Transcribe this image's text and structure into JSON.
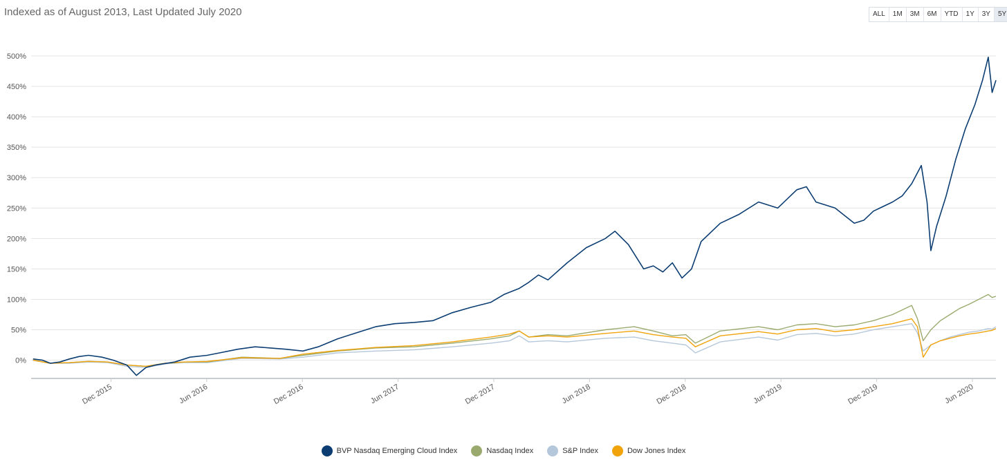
{
  "header": {
    "title": "Indexed as of August 2013, Last Updated July 2020",
    "range_buttons": [
      "ALL",
      "1M",
      "3M",
      "6M",
      "YTD",
      "1Y",
      "3Y",
      "5Y"
    ],
    "active_range": "5Y"
  },
  "chart_data": {
    "type": "line",
    "title": "Indexed as of August 2013, Last Updated July 2020",
    "ylim": [
      -30,
      500
    ],
    "yticks": [
      0,
      50,
      100,
      150,
      200,
      250,
      300,
      350,
      400,
      450,
      500
    ],
    "ytick_labels": [
      "0%",
      "50%",
      "100%",
      "150%",
      "200%",
      "250%",
      "300%",
      "350%",
      "400%",
      "450%",
      "500%"
    ],
    "xlim": [
      2015.5,
      2020.54
    ],
    "xticks": [
      2015.917,
      2016.417,
      2016.917,
      2017.417,
      2017.917,
      2018.417,
      2018.917,
      2019.417,
      2019.917,
      2020.417
    ],
    "xtick_labels": [
      "Dec 2015",
      "Jun 2016",
      "Dec 2016",
      "Jun 2017",
      "Dec 2017",
      "Jun 2018",
      "Dec 2018",
      "Jun 2019",
      "Dec 2019",
      "Jun 2020"
    ],
    "grid": true,
    "legend": "bottom-center",
    "series": [
      {
        "name": "BVP Nasdaq Emerging Cloud Index",
        "color": "#0b3d72",
        "x": [
          2015.51,
          2015.56,
          2015.6,
          2015.65,
          2015.7,
          2015.75,
          2015.8,
          2015.87,
          2015.93,
          2016.0,
          2016.05,
          2016.1,
          2016.15,
          2016.25,
          2016.33,
          2016.42,
          2016.5,
          2016.58,
          2016.67,
          2016.75,
          2016.83,
          2016.92,
          2017.0,
          2017.1,
          2017.2,
          2017.3,
          2017.4,
          2017.5,
          2017.6,
          2017.7,
          2017.8,
          2017.9,
          2017.97,
          2018.05,
          2018.1,
          2018.15,
          2018.2,
          2018.3,
          2018.4,
          2018.5,
          2018.55,
          2018.62,
          2018.7,
          2018.75,
          2018.8,
          2018.85,
          2018.9,
          2018.95,
          2019.0,
          2019.1,
          2019.2,
          2019.3,
          2019.4,
          2019.5,
          2019.55,
          2019.6,
          2019.7,
          2019.8,
          2019.85,
          2019.9,
          2020.0,
          2020.05,
          2020.1,
          2020.15,
          2020.18,
          2020.2,
          2020.23,
          2020.28,
          2020.33,
          2020.38,
          2020.43,
          2020.47,
          2020.5,
          2020.52,
          2020.54
        ],
        "values": [
          2,
          0,
          -5,
          -3,
          2,
          6,
          8,
          5,
          0,
          -8,
          -25,
          -12,
          -8,
          -3,
          5,
          8,
          13,
          18,
          22,
          20,
          18,
          15,
          22,
          35,
          45,
          55,
          60,
          62,
          65,
          78,
          87,
          95,
          108,
          118,
          128,
          140,
          132,
          160,
          185,
          200,
          212,
          190,
          150,
          155,
          145,
          160,
          135,
          150,
          195,
          225,
          240,
          260,
          250,
          280,
          285,
          260,
          250,
          225,
          230,
          245,
          260,
          270,
          290,
          320,
          260,
          180,
          220,
          270,
          330,
          380,
          420,
          460,
          498,
          440,
          460
        ]
      },
      {
        "name": "Nasdaq Index",
        "color": "#9aaa6e",
        "x": [
          2015.51,
          2015.6,
          2015.7,
          2015.8,
          2015.9,
          2016.0,
          2016.1,
          2016.2,
          2016.3,
          2016.42,
          2016.6,
          2016.8,
          2016.92,
          2017.1,
          2017.3,
          2017.5,
          2017.7,
          2017.9,
          2018.0,
          2018.05,
          2018.1,
          2018.2,
          2018.3,
          2018.5,
          2018.65,
          2018.75,
          2018.85,
          2018.92,
          2018.97,
          2019.1,
          2019.3,
          2019.4,
          2019.5,
          2019.6,
          2019.7,
          2019.8,
          2019.9,
          2020.0,
          2020.1,
          2020.13,
          2020.16,
          2020.2,
          2020.25,
          2020.3,
          2020.35,
          2020.4,
          2020.45,
          2020.5,
          2020.52,
          2020.54
        ],
        "values": [
          0,
          -5,
          -4,
          -2,
          -3,
          -8,
          -10,
          -5,
          -3,
          -3,
          5,
          3,
          8,
          15,
          20,
          22,
          28,
          35,
          40,
          48,
          38,
          42,
          40,
          50,
          55,
          48,
          40,
          42,
          28,
          48,
          55,
          50,
          58,
          60,
          55,
          58,
          65,
          75,
          90,
          68,
          32,
          50,
          65,
          75,
          85,
          92,
          100,
          108,
          103,
          105
        ]
      },
      {
        "name": "S&P Index",
        "color": "#b5c7da",
        "x": [
          2015.51,
          2015.6,
          2015.7,
          2015.8,
          2015.9,
          2016.0,
          2016.1,
          2016.2,
          2016.3,
          2016.42,
          2016.6,
          2016.8,
          2016.92,
          2017.1,
          2017.3,
          2017.5,
          2017.7,
          2017.9,
          2018.0,
          2018.05,
          2018.1,
          2018.2,
          2018.3,
          2018.5,
          2018.65,
          2018.75,
          2018.85,
          2018.92,
          2018.97,
          2019.1,
          2019.3,
          2019.4,
          2019.5,
          2019.6,
          2019.7,
          2019.8,
          2019.9,
          2020.0,
          2020.1,
          2020.13,
          2020.16,
          2020.2,
          2020.25,
          2020.3,
          2020.35,
          2020.4,
          2020.45,
          2020.5,
          2020.52,
          2020.54
        ],
        "values": [
          0,
          -5,
          -5,
          -3,
          -4,
          -10,
          -12,
          -6,
          -4,
          -4,
          3,
          2,
          5,
          12,
          15,
          17,
          22,
          28,
          32,
          40,
          30,
          32,
          30,
          36,
          38,
          32,
          28,
          25,
          12,
          30,
          38,
          33,
          42,
          44,
          40,
          43,
          50,
          55,
          60,
          45,
          15,
          25,
          32,
          38,
          42,
          46,
          48,
          52,
          51,
          55
        ]
      },
      {
        "name": "Dow Jones Index",
        "color": "#f0a30a",
        "x": [
          2015.51,
          2015.6,
          2015.7,
          2015.8,
          2015.9,
          2016.0,
          2016.1,
          2016.2,
          2016.3,
          2016.42,
          2016.6,
          2016.8,
          2016.92,
          2017.1,
          2017.3,
          2017.5,
          2017.7,
          2017.9,
          2018.0,
          2018.05,
          2018.1,
          2018.2,
          2018.3,
          2018.5,
          2018.65,
          2018.75,
          2018.85,
          2018.92,
          2018.97,
          2019.1,
          2019.3,
          2019.4,
          2019.5,
          2019.6,
          2019.7,
          2019.8,
          2019.9,
          2020.0,
          2020.1,
          2020.13,
          2020.16,
          2020.2,
          2020.25,
          2020.3,
          2020.35,
          2020.4,
          2020.45,
          2020.5,
          2020.52,
          2020.54
        ],
        "values": [
          0,
          -5,
          -4,
          -2,
          -3,
          -8,
          -10,
          -5,
          -3,
          -2,
          4,
          3,
          10,
          16,
          21,
          24,
          30,
          38,
          43,
          48,
          38,
          40,
          38,
          44,
          48,
          42,
          38,
          36,
          22,
          40,
          47,
          43,
          50,
          52,
          47,
          50,
          55,
          60,
          68,
          55,
          5,
          25,
          32,
          36,
          40,
          43,
          45,
          48,
          49,
          52
        ]
      }
    ]
  }
}
